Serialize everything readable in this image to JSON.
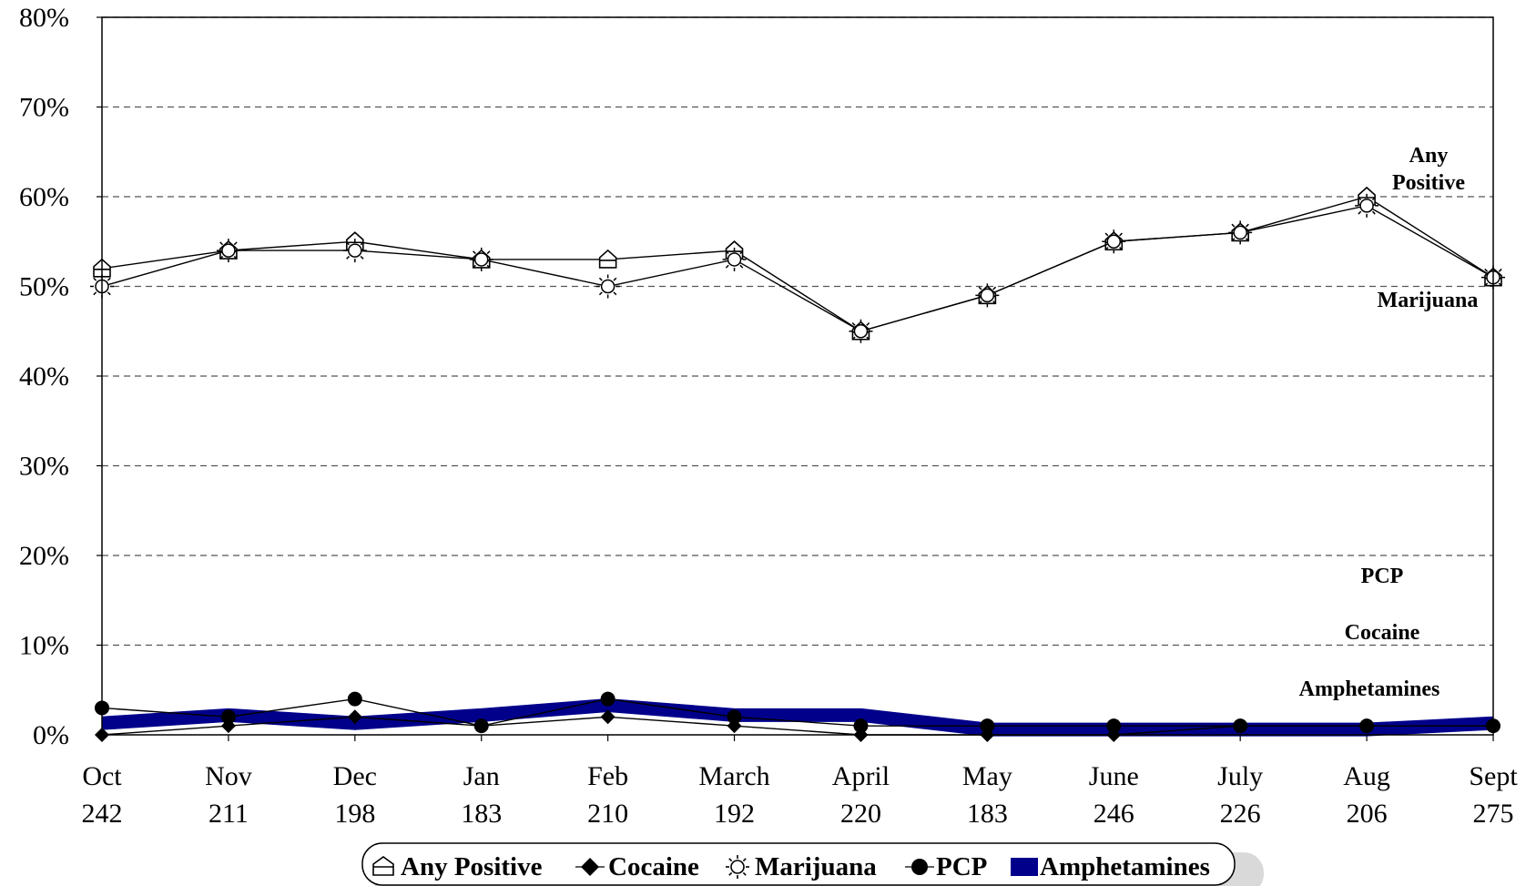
{
  "chart_data": {
    "type": "line",
    "title": "",
    "xlabel": "",
    "ylabel": "",
    "ylim": [
      0,
      80
    ],
    "y_ticks": [
      "0%",
      "10%",
      "20%",
      "30%",
      "40%",
      "50%",
      "60%",
      "70%",
      "80%"
    ],
    "grid": "horizontal dashed",
    "categories": [
      "Oct",
      "Nov",
      "Dec",
      "Jan",
      "Feb",
      "March",
      "April",
      "May",
      "June",
      "July",
      "Aug",
      "Sept"
    ],
    "sample_sizes": [
      "242",
      "211",
      "198",
      "183",
      "210",
      "192",
      "220",
      "183",
      "246",
      "226",
      "206",
      "275"
    ],
    "series": [
      {
        "name": "Any Positive",
        "marker": "house-outline",
        "color": "#000000",
        "values": [
          52,
          54,
          55,
          53,
          53,
          54,
          45,
          49,
          55,
          56,
          60,
          51
        ]
      },
      {
        "name": "Cocaine",
        "marker": "filled-diamond",
        "color": "#000000",
        "values": [
          0,
          1,
          2,
          1,
          2,
          1,
          0,
          0,
          0,
          1,
          1,
          1
        ]
      },
      {
        "name": "Marijuana",
        "marker": "sun-outline",
        "color": "#000000",
        "values": [
          50,
          54,
          54,
          53,
          50,
          53,
          45,
          49,
          55,
          56,
          59,
          51
        ]
      },
      {
        "name": "PCP",
        "marker": "filled-circle",
        "color": "#000000",
        "values": [
          3,
          2,
          4,
          1,
          4,
          2,
          1,
          1,
          1,
          1,
          1,
          1
        ]
      },
      {
        "name": "Amphetamines",
        "marker": "thick-band",
        "color": "#00008b",
        "values": [
          1.3,
          2.2,
          1.3,
          2.2,
          3.3,
          2.2,
          2.2,
          0.6,
          0.6,
          0.6,
          0.6,
          1.3
        ]
      }
    ],
    "annotations": [
      {
        "text": "Any",
        "series": "Any Positive"
      },
      {
        "text": "Positive",
        "series": "Any Positive"
      },
      {
        "text": "Marijuana",
        "series": "Marijuana"
      },
      {
        "text": "PCP",
        "series": "PCP"
      },
      {
        "text": "Cocaine",
        "series": "Cocaine"
      },
      {
        "text": "Amphetamines",
        "series": "Amphetamines"
      }
    ],
    "legend": {
      "placement": "bottom-center",
      "items": [
        "Any Positive",
        "Cocaine",
        "Marijuana",
        "PCP",
        "Amphetamines"
      ]
    }
  }
}
